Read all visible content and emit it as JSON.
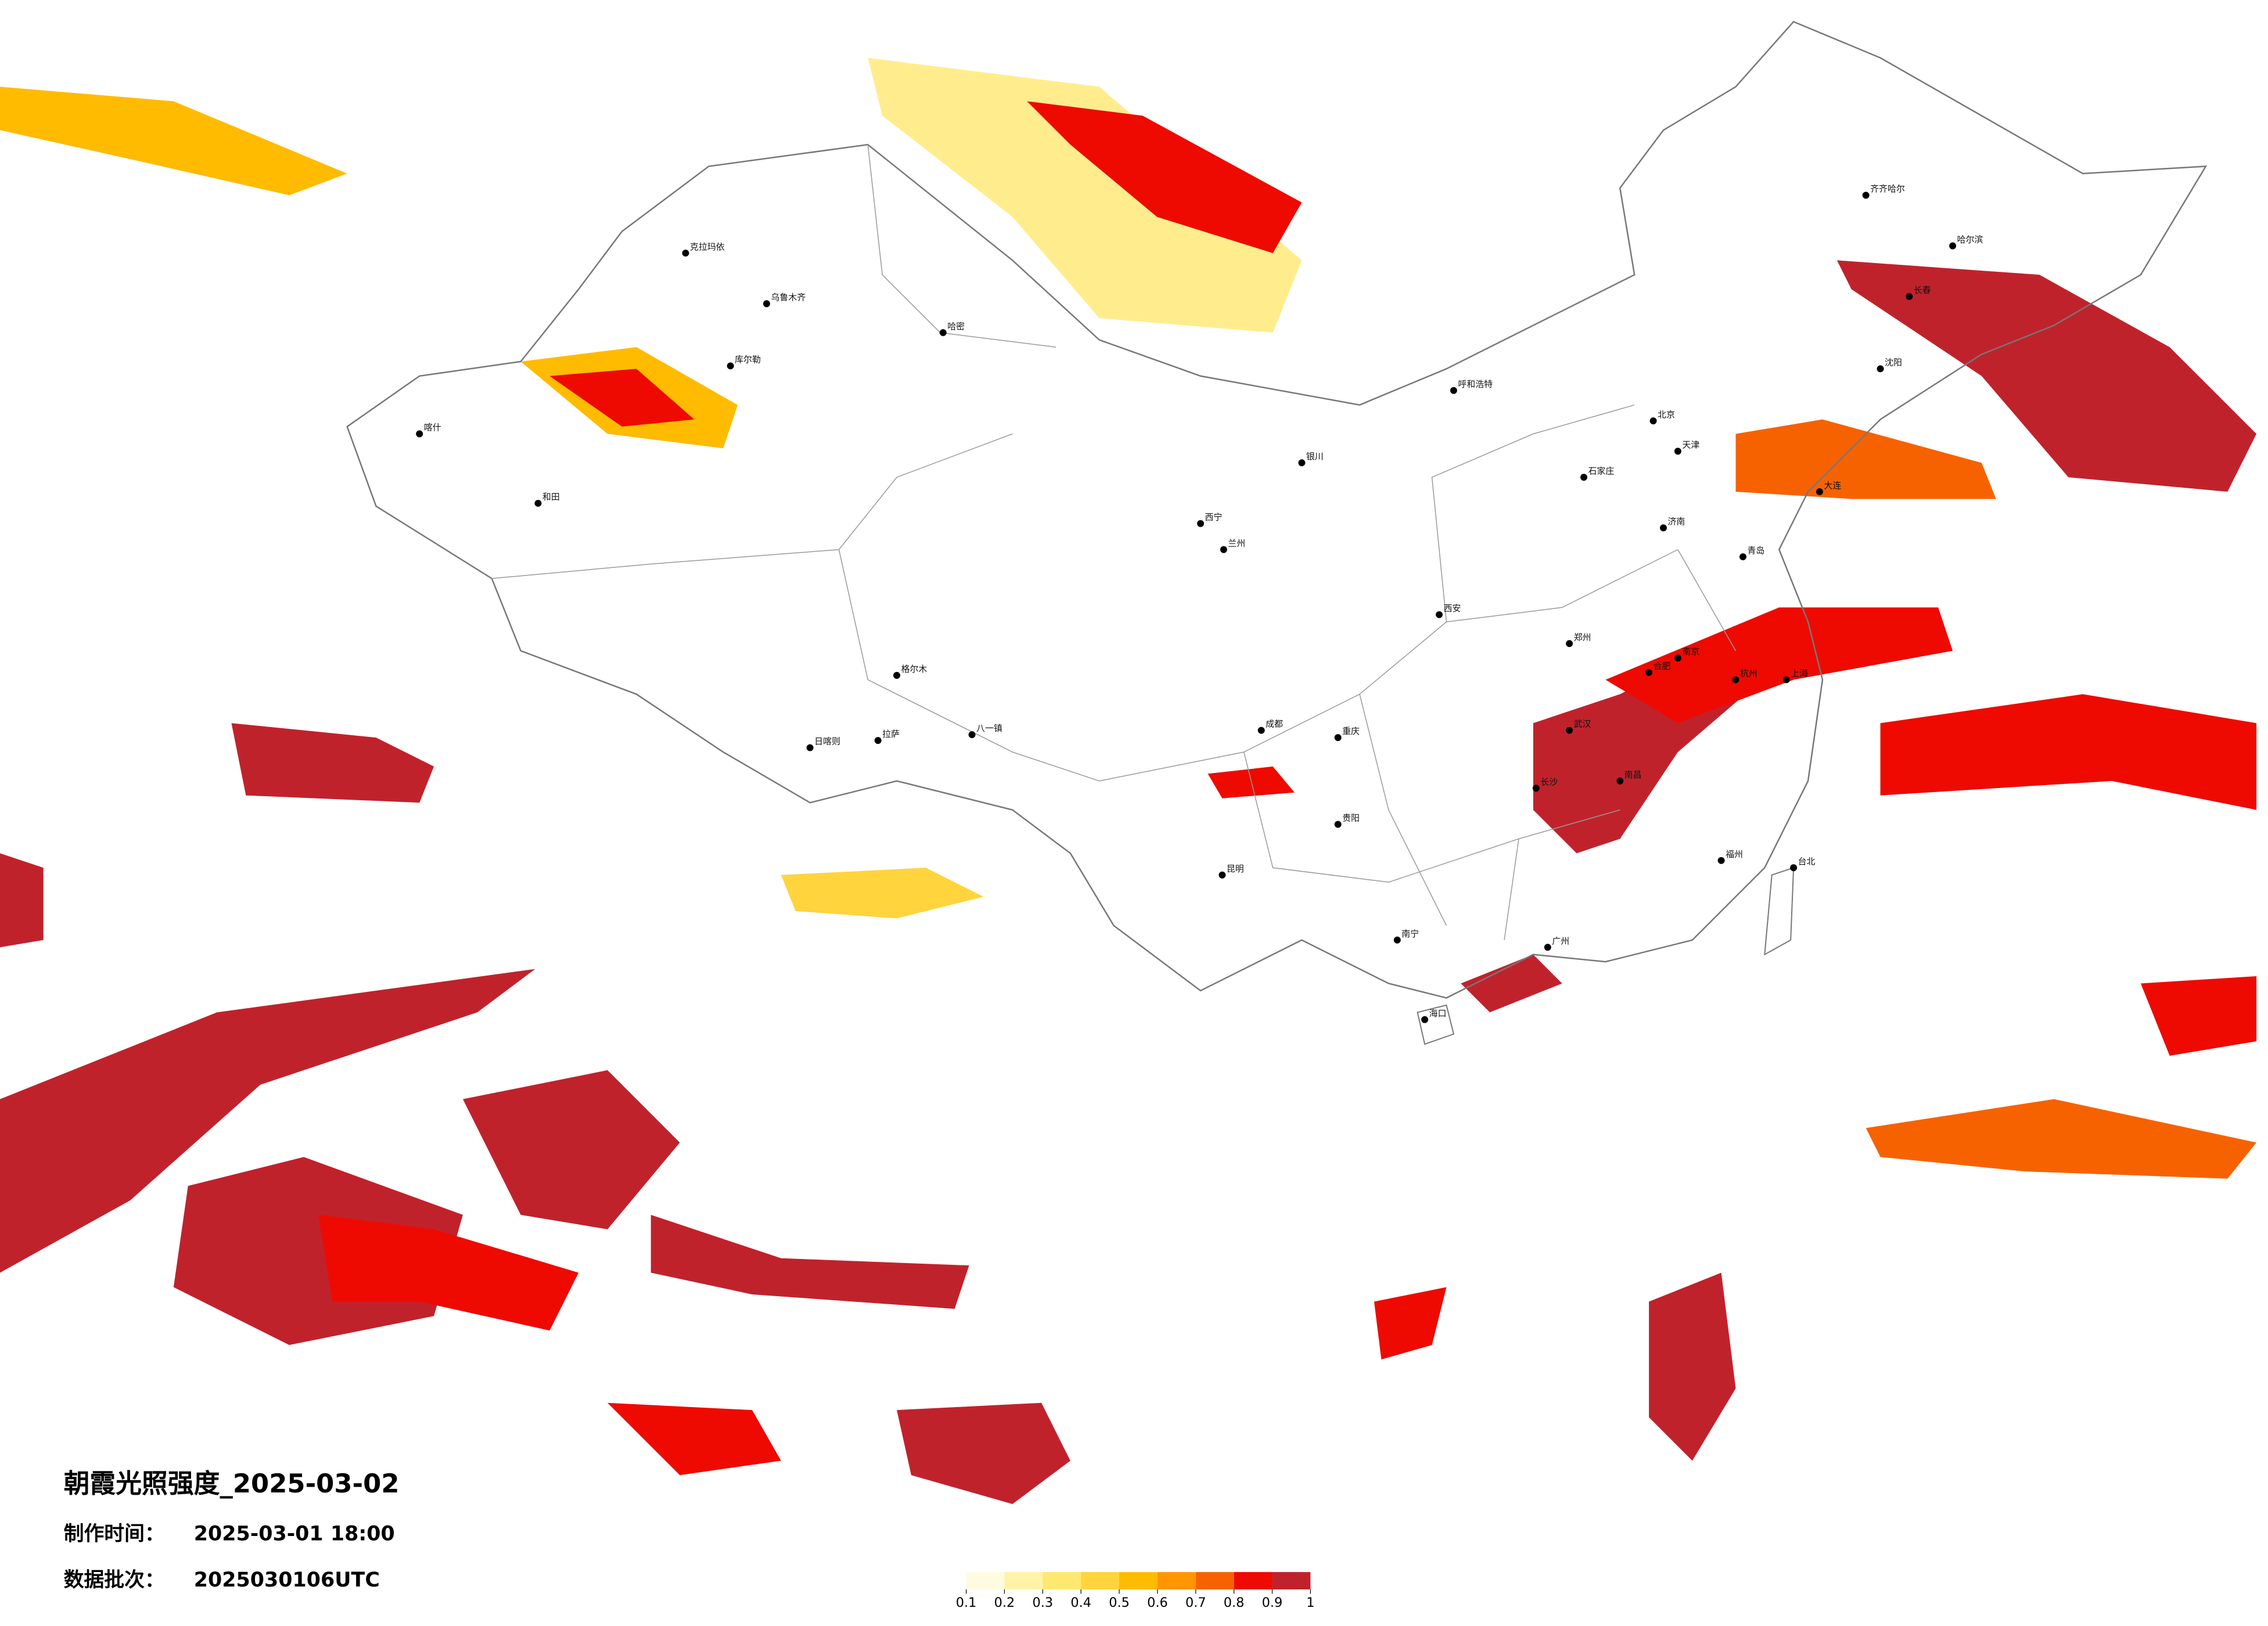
{
  "map": {
    "title": "朝霞光照强度_2025-03-02",
    "made_label": "制作时间：",
    "made_time": "2025-03-01 18:00",
    "batch_label": "数据批次：",
    "batch": "2025030106UTC",
    "legend": {
      "colors": [
        "#fffbe0",
        "#fff3a8",
        "#ffe870",
        "#ffd43c",
        "#ffbb00",
        "#ff9500",
        "#f76200",
        "#ee0a00",
        "#c0222c"
      ],
      "ticks": [
        0.1,
        0.2,
        0.3,
        0.4,
        0.5,
        0.6,
        0.7,
        0.8,
        0.9,
        1
      ]
    },
    "cities": [
      "克拉玛依",
      "乌鲁木齐",
      "哈密",
      "库尔勒",
      "和田",
      "喀什",
      "拉萨",
      "日喀则",
      "格尔木",
      "八一镇",
      "西宁",
      "兰州",
      "银川",
      "呼和浩特",
      "成都",
      "重庆",
      "昆明",
      "贵阳",
      "南宁",
      "海口",
      "武汉",
      "长沙",
      "南昌",
      "福州",
      "台北",
      "杭州",
      "南京",
      "合肥",
      "郑州",
      "济南",
      "石家庄",
      "北京",
      "天津",
      "哈尔滨",
      "长春",
      "沈阳",
      "大连",
      "青岛",
      "西安",
      "齐齐哈尔",
      "广州",
      "上海"
    ]
  }
}
